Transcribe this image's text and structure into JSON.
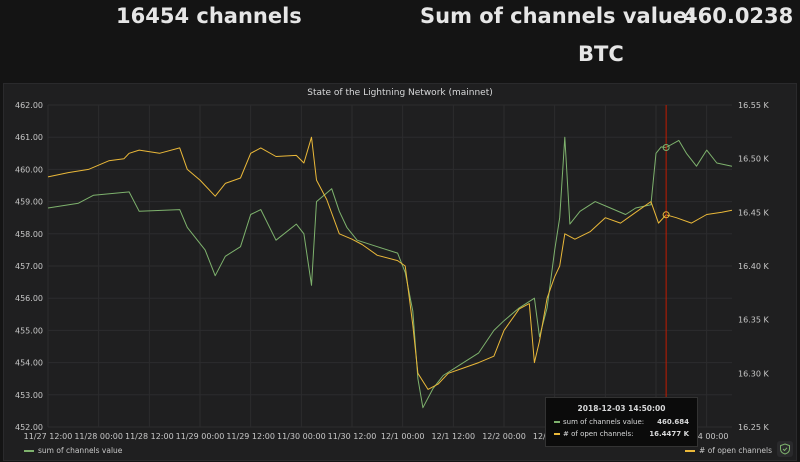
{
  "stats": {
    "channels": "16454 channels",
    "sum_label": "Sum of channels value:",
    "sum_value": "460.0238",
    "sum_unit": "BTC"
  },
  "panel": {
    "title": "State of the Lightning Network (mainnet)"
  },
  "tooltip": {
    "time": "2018-12-03 14:50:00",
    "rows": [
      {
        "label": "sum of channels value:",
        "value": "460.684",
        "color": "#7eb26d"
      },
      {
        "label": "# of open channels:",
        "value": "16.4477 K",
        "color": "#eab839"
      }
    ]
  },
  "legend": {
    "left_label": "sum of channels value",
    "right_label": "# of open channels"
  },
  "colors": {
    "value_series": "#7eb26d",
    "channels_series": "#eab839",
    "marker": "#bf1b00"
  },
  "chart_data": {
    "type": "line",
    "title": "State of the Lightning Network (mainnet)",
    "x_ticks": [
      "11/27 12:00",
      "11/28 00:00",
      "11/28 12:00",
      "11/29 00:00",
      "11/29 12:00",
      "11/30 00:00",
      "11/30 12:00",
      "12/1 00:00",
      "12/1 12:00",
      "12/2 00:00",
      "12/2 12:00",
      "12/3 00:00",
      "12/3 12:00",
      "12/4 00:00"
    ],
    "y_left_ticks": [
      "452.00",
      "453.00",
      "454.00",
      "455.00",
      "456.00",
      "457.00",
      "458.00",
      "459.00",
      "460.00",
      "461.00",
      "462.00"
    ],
    "y_left_range": [
      452,
      462
    ],
    "y_right_ticks": [
      "16.25 K",
      "16.30 K",
      "16.35 K",
      "16.40 K",
      "16.45 K",
      "16.50 K",
      "16.55 K"
    ],
    "y_right_range": [
      16.25,
      16.55
    ],
    "x_range": [
      0,
      13.5
    ],
    "marker_x": 12.2,
    "series": [
      {
        "name": "sum of channels value",
        "axis": "left",
        "points": [
          [
            0,
            458.8
          ],
          [
            0.6,
            458.95
          ],
          [
            0.9,
            459.2
          ],
          [
            1.6,
            459.3
          ],
          [
            1.8,
            458.7
          ],
          [
            2.6,
            458.75
          ],
          [
            2.75,
            458.2
          ],
          [
            3.1,
            457.5
          ],
          [
            3.3,
            456.7
          ],
          [
            3.5,
            457.3
          ],
          [
            3.8,
            457.6
          ],
          [
            4.0,
            458.6
          ],
          [
            4.2,
            458.75
          ],
          [
            4.5,
            457.8
          ],
          [
            4.9,
            458.3
          ],
          [
            5.05,
            458.0
          ],
          [
            5.2,
            456.4
          ],
          [
            5.3,
            459.0
          ],
          [
            5.6,
            459.4
          ],
          [
            5.75,
            458.7
          ],
          [
            5.9,
            458.2
          ],
          [
            6.1,
            457.8
          ],
          [
            6.5,
            457.6
          ],
          [
            6.9,
            457.4
          ],
          [
            7.05,
            456.8
          ],
          [
            7.2,
            455.6
          ],
          [
            7.3,
            453.5
          ],
          [
            7.4,
            452.6
          ],
          [
            7.6,
            453.2
          ],
          [
            7.8,
            453.6
          ],
          [
            8.2,
            454.0
          ],
          [
            8.5,
            454.3
          ],
          [
            8.8,
            455.0
          ],
          [
            9.0,
            455.3
          ],
          [
            9.3,
            455.7
          ],
          [
            9.6,
            456.0
          ],
          [
            9.7,
            454.8
          ],
          [
            9.85,
            455.7
          ],
          [
            10.0,
            457.5
          ],
          [
            10.1,
            458.5
          ],
          [
            10.2,
            461.0
          ],
          [
            10.3,
            458.3
          ],
          [
            10.5,
            458.7
          ],
          [
            10.8,
            459.0
          ],
          [
            11.1,
            458.8
          ],
          [
            11.4,
            458.6
          ],
          [
            11.6,
            458.8
          ],
          [
            11.9,
            458.9
          ],
          [
            12.0,
            460.5
          ],
          [
            12.1,
            460.7
          ],
          [
            12.2,
            460.68
          ],
          [
            12.45,
            460.9
          ],
          [
            12.6,
            460.5
          ],
          [
            12.8,
            460.1
          ],
          [
            13.0,
            460.6
          ],
          [
            13.2,
            460.2
          ],
          [
            13.5,
            460.1
          ]
        ]
      },
      {
        "name": "# of open channels",
        "axis": "right",
        "points": [
          [
            0,
            16.483
          ],
          [
            0.4,
            16.487
          ],
          [
            0.8,
            16.49
          ],
          [
            1.2,
            16.498
          ],
          [
            1.5,
            16.5
          ],
          [
            1.6,
            16.505
          ],
          [
            1.8,
            16.508
          ],
          [
            2.2,
            16.505
          ],
          [
            2.6,
            16.51
          ],
          [
            2.75,
            16.49
          ],
          [
            3.0,
            16.48
          ],
          [
            3.3,
            16.465
          ],
          [
            3.5,
            16.477
          ],
          [
            3.8,
            16.482
          ],
          [
            4.0,
            16.505
          ],
          [
            4.2,
            16.51
          ],
          [
            4.5,
            16.502
          ],
          [
            4.9,
            16.503
          ],
          [
            5.05,
            16.496
          ],
          [
            5.2,
            16.52
          ],
          [
            5.3,
            16.48
          ],
          [
            5.5,
            16.462
          ],
          [
            5.75,
            16.43
          ],
          [
            6.0,
            16.425
          ],
          [
            6.2,
            16.42
          ],
          [
            6.5,
            16.41
          ],
          [
            6.9,
            16.405
          ],
          [
            7.05,
            16.4
          ],
          [
            7.2,
            16.345
          ],
          [
            7.3,
            16.3
          ],
          [
            7.5,
            16.285
          ],
          [
            7.7,
            16.29
          ],
          [
            7.9,
            16.3
          ],
          [
            8.2,
            16.305
          ],
          [
            8.5,
            16.31
          ],
          [
            8.8,
            16.316
          ],
          [
            9.0,
            16.34
          ],
          [
            9.3,
            16.36
          ],
          [
            9.5,
            16.365
          ],
          [
            9.6,
            16.31
          ],
          [
            9.7,
            16.33
          ],
          [
            9.85,
            16.37
          ],
          [
            10.0,
            16.39
          ],
          [
            10.1,
            16.4
          ],
          [
            10.2,
            16.43
          ],
          [
            10.4,
            16.425
          ],
          [
            10.7,
            16.432
          ],
          [
            11.0,
            16.445
          ],
          [
            11.3,
            16.44
          ],
          [
            11.6,
            16.45
          ],
          [
            11.9,
            16.46
          ],
          [
            12.05,
            16.44
          ],
          [
            12.2,
            16.4477
          ],
          [
            12.4,
            16.445
          ],
          [
            12.7,
            16.44
          ],
          [
            13.0,
            16.448
          ],
          [
            13.3,
            16.45
          ],
          [
            13.5,
            16.452
          ]
        ]
      }
    ]
  }
}
